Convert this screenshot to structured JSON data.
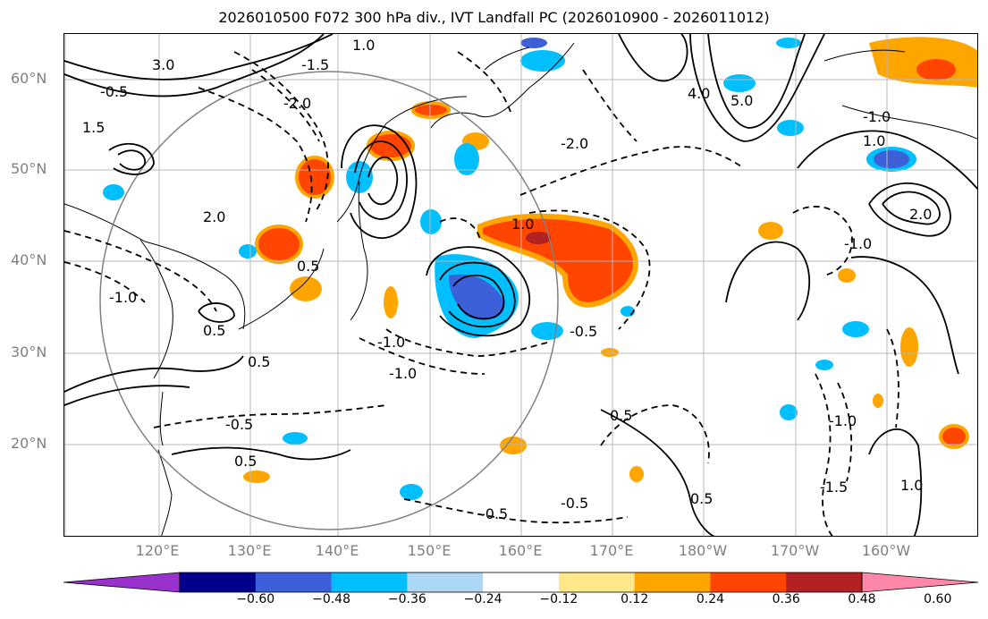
{
  "title": "2026010500 F072 300 hPa div., IVT Landfall PC (2026010900 - 2026011012)",
  "lat_labels": [
    "60°N",
    "50°N",
    "40°N",
    "30°N",
    "20°N"
  ],
  "lon_labels": [
    "120°E",
    "130°E",
    "140°E",
    "150°E",
    "160°E",
    "170°E",
    "180°W",
    "170°W",
    "160°W"
  ],
  "contour_labels": [
    "3.0",
    "1.0",
    "-0.5",
    "-1.5",
    "-2.0",
    "1.5",
    "2.0",
    "0.5",
    "-1.0",
    "-2.0",
    "4.0",
    "5.0",
    "1.0",
    "-1.0",
    "2.0",
    "-1.0",
    "1.0",
    "0.5",
    "-0.5",
    "-1.0",
    "-1.0",
    "0.5",
    "-0.5",
    "-0.5",
    "0.5",
    "0.5",
    "-0.5",
    "-1.5",
    "-1.0",
    "1.0",
    "0.5"
  ],
  "colorbar": {
    "ticks": [
      "−0.60",
      "−0.48",
      "−0.36",
      "−0.24",
      "−0.12",
      "0.12",
      "0.24",
      "0.36",
      "0.48",
      "0.60"
    ],
    "colors": [
      "#9932cc",
      "#00008b",
      "#3d5fd8",
      "#00bfff",
      "#add8f5",
      "#ffffff",
      "#ffe88a",
      "#ffa500",
      "#ff4500",
      "#b22222",
      "#ff88aa"
    ]
  }
}
